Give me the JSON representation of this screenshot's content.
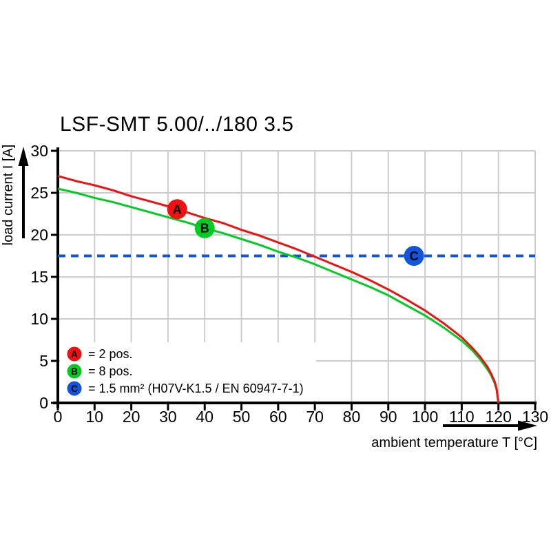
{
  "title": "LSF-SMT 5.00/../180 3.5",
  "colors": {
    "red": "#ee1111",
    "green": "#00cc22",
    "blue": "#1155dd",
    "grid": "#cccccc",
    "axis": "#000000",
    "background": "#ffffff",
    "marker_letter": "#ffffff"
  },
  "chart_data": {
    "type": "line",
    "title": "LSF-SMT 5.00/../180 3.5",
    "xlabel": "ambient temperature T [°C]",
    "ylabel": "load current I [A]",
    "xlim": [
      0,
      130
    ],
    "ylim": [
      0,
      30
    ],
    "x_ticks": [
      0,
      10,
      20,
      30,
      40,
      50,
      60,
      70,
      80,
      90,
      100,
      110,
      120,
      130
    ],
    "y_ticks": [
      0,
      5,
      10,
      15,
      20,
      25,
      30
    ],
    "grid": true,
    "legend_position": "bottom-left-inside",
    "series": [
      {
        "name": "A",
        "legend_label": "= 2 pos.",
        "color_key": "red",
        "style": "solid",
        "marker": {
          "letter": "A",
          "x": 32.5,
          "y": 23.05
        },
        "points": [
          [
            0,
            27.0
          ],
          [
            5,
            26.4
          ],
          [
            10,
            25.9
          ],
          [
            15,
            25.3
          ],
          [
            20,
            24.6
          ],
          [
            25,
            24.0
          ],
          [
            30,
            23.4
          ],
          [
            35,
            22.7
          ],
          [
            40,
            22.0
          ],
          [
            45,
            21.4
          ],
          [
            50,
            20.6
          ],
          [
            55,
            19.9
          ],
          [
            60,
            19.1
          ],
          [
            65,
            18.3
          ],
          [
            70,
            17.4
          ],
          [
            75,
            16.5
          ],
          [
            80,
            15.6
          ],
          [
            85,
            14.6
          ],
          [
            90,
            13.5
          ],
          [
            95,
            12.3
          ],
          [
            100,
            11.0
          ],
          [
            105,
            9.5
          ],
          [
            110,
            7.8
          ],
          [
            113,
            6.5
          ],
          [
            115,
            5.5
          ],
          [
            117,
            4.3
          ],
          [
            118,
            3.5
          ],
          [
            119,
            2.5
          ],
          [
            119.5,
            1.7
          ],
          [
            120,
            0
          ]
        ]
      },
      {
        "name": "B",
        "legend_label": "= 8 pos.",
        "color_key": "green",
        "style": "solid",
        "marker": {
          "letter": "B",
          "x": 40,
          "y": 20.8
        },
        "points": [
          [
            0,
            25.5
          ],
          [
            5,
            25.0
          ],
          [
            10,
            24.4
          ],
          [
            15,
            23.9
          ],
          [
            20,
            23.3
          ],
          [
            25,
            22.7
          ],
          [
            30,
            22.1
          ],
          [
            35,
            21.5
          ],
          [
            40,
            20.8
          ],
          [
            45,
            20.2
          ],
          [
            50,
            19.5
          ],
          [
            55,
            18.8
          ],
          [
            60,
            18.0
          ],
          [
            65,
            17.3
          ],
          [
            70,
            16.5
          ],
          [
            75,
            15.6
          ],
          [
            80,
            14.7
          ],
          [
            85,
            13.8
          ],
          [
            90,
            12.8
          ],
          [
            95,
            11.6
          ],
          [
            100,
            10.4
          ],
          [
            105,
            9.0
          ],
          [
            110,
            7.4
          ],
          [
            113,
            6.2
          ],
          [
            115,
            5.2
          ],
          [
            117,
            4.0
          ],
          [
            118,
            3.3
          ],
          [
            119,
            2.3
          ],
          [
            119.5,
            1.6
          ],
          [
            120,
            0
          ]
        ]
      },
      {
        "name": "C",
        "legend_label": "= 1.5 mm² (H07V-K1.5 / EN 60947-7-1)",
        "color_key": "blue",
        "style": "dashed",
        "marker": {
          "letter": "C",
          "x": 97,
          "y": 17.5
        },
        "points": [
          [
            0,
            17.5
          ],
          [
            130,
            17.5
          ]
        ]
      }
    ]
  }
}
